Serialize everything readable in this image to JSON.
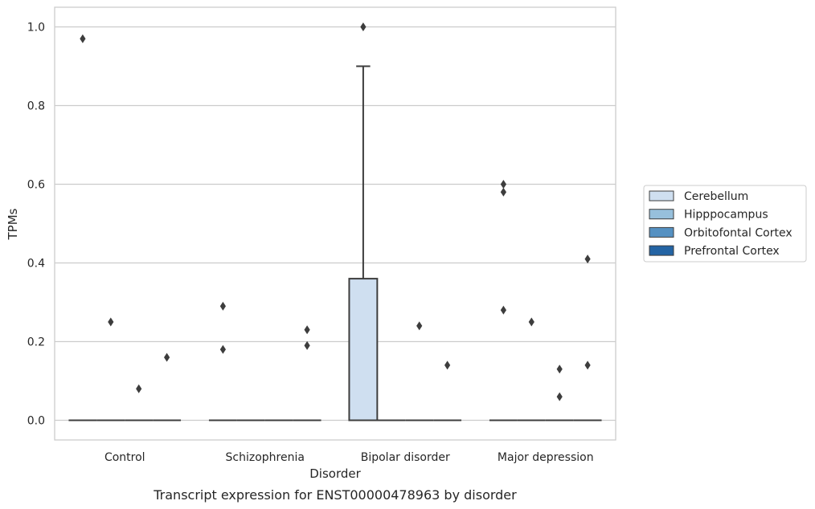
{
  "chart_data": {
    "type": "box",
    "xlabel": "Disorder",
    "ylabel": "TPMs",
    "caption": "Transcript expression for ENST00000478963 by disorder",
    "categories": [
      "Control",
      "Schizophrenia",
      "Bipolar disorder",
      "Major depression"
    ],
    "ylim": [
      -0.05,
      1.05
    ],
    "yticks": [
      0.0,
      0.2,
      0.4,
      0.6,
      0.8,
      1.0
    ],
    "ytick_labels": [
      "0.0",
      "0.2",
      "0.4",
      "0.6",
      "0.8",
      "1.0"
    ],
    "grid": "horizontal",
    "legend_position": "right",
    "series": [
      {
        "name": "Cerebellum",
        "color": "#cfdff0"
      },
      {
        "name": "Hipppocampus",
        "color": "#97c0dc"
      },
      {
        "name": "Orbitofontal Cortex",
        "color": "#5591c2"
      },
      {
        "name": "Prefrontal Cortex",
        "color": "#2464a4"
      }
    ],
    "boxes": [
      {
        "category": "Control",
        "series": "Cerebellum",
        "q1": 0,
        "median": 0,
        "q3": 0,
        "whisker_low": 0,
        "whisker_high": 0,
        "outliers": [
          0.97
        ]
      },
      {
        "category": "Control",
        "series": "Hipppocampus",
        "q1": 0,
        "median": 0,
        "q3": 0,
        "whisker_low": 0,
        "whisker_high": 0,
        "outliers": [
          0.25
        ]
      },
      {
        "category": "Control",
        "series": "Orbitofontal Cortex",
        "q1": 0,
        "median": 0,
        "q3": 0,
        "whisker_low": 0,
        "whisker_high": 0,
        "outliers": [
          0.08
        ]
      },
      {
        "category": "Control",
        "series": "Prefrontal Cortex",
        "q1": 0,
        "median": 0,
        "q3": 0,
        "whisker_low": 0,
        "whisker_high": 0,
        "outliers": [
          0.16
        ]
      },
      {
        "category": "Schizophrenia",
        "series": "Cerebellum",
        "q1": 0,
        "median": 0,
        "q3": 0,
        "whisker_low": 0,
        "whisker_high": 0,
        "outliers": [
          0.29,
          0.18
        ]
      },
      {
        "category": "Schizophrenia",
        "series": "Hipppocampus",
        "q1": 0,
        "median": 0,
        "q3": 0,
        "whisker_low": 0,
        "whisker_high": 0,
        "outliers": []
      },
      {
        "category": "Schizophrenia",
        "series": "Orbitofontal Cortex",
        "q1": 0,
        "median": 0,
        "q3": 0,
        "whisker_low": 0,
        "whisker_high": 0,
        "outliers": []
      },
      {
        "category": "Schizophrenia",
        "series": "Prefrontal Cortex",
        "q1": 0,
        "median": 0,
        "q3": 0,
        "whisker_low": 0,
        "whisker_high": 0,
        "outliers": [
          0.23,
          0.19
        ]
      },
      {
        "category": "Bipolar disorder",
        "series": "Cerebellum",
        "q1": 0,
        "median": 0,
        "q3": 0.36,
        "whisker_low": 0,
        "whisker_high": 0.9,
        "outliers": [
          1.0
        ]
      },
      {
        "category": "Bipolar disorder",
        "series": "Hipppocampus",
        "q1": 0,
        "median": 0,
        "q3": 0,
        "whisker_low": 0,
        "whisker_high": 0,
        "outliers": []
      },
      {
        "category": "Bipolar disorder",
        "series": "Orbitofontal Cortex",
        "q1": 0,
        "median": 0,
        "q3": 0,
        "whisker_low": 0,
        "whisker_high": 0,
        "outliers": [
          0.24
        ]
      },
      {
        "category": "Bipolar disorder",
        "series": "Prefrontal Cortex",
        "q1": 0,
        "median": 0,
        "q3": 0,
        "whisker_low": 0,
        "whisker_high": 0,
        "outliers": [
          0.14
        ]
      },
      {
        "category": "Major depression",
        "series": "Cerebellum",
        "q1": 0,
        "median": 0,
        "q3": 0,
        "whisker_low": 0,
        "whisker_high": 0,
        "outliers": [
          0.6,
          0.58,
          0.28
        ]
      },
      {
        "category": "Major depression",
        "series": "Hipppocampus",
        "q1": 0,
        "median": 0,
        "q3": 0,
        "whisker_low": 0,
        "whisker_high": 0,
        "outliers": [
          0.25
        ]
      },
      {
        "category": "Major depression",
        "series": "Orbitofontal Cortex",
        "q1": 0,
        "median": 0,
        "q3": 0,
        "whisker_low": 0,
        "whisker_high": 0,
        "outliers": [
          0.13,
          0.06
        ]
      },
      {
        "category": "Major depression",
        "series": "Prefrontal Cortex",
        "q1": 0,
        "median": 0,
        "q3": 0,
        "whisker_low": 0,
        "whisker_high": 0,
        "outliers": [
          0.41,
          0.14
        ]
      }
    ]
  }
}
